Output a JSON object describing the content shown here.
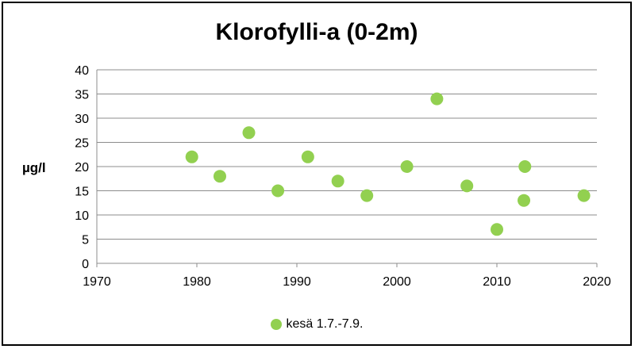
{
  "chart_data": {
    "type": "scatter",
    "title": "Klorofylli-a (0-2m)",
    "xlabel": "",
    "ylabel": "µg/l",
    "xlim": [
      1970,
      2020
    ],
    "ylim": [
      0,
      40
    ],
    "x_ticks": [
      1970,
      1980,
      1990,
      2000,
      2010,
      2020
    ],
    "y_ticks": [
      0,
      5,
      10,
      15,
      20,
      25,
      30,
      35,
      40
    ],
    "grid": true,
    "legend": "bottom",
    "series": [
      {
        "name": "kesä 1.7.-7.9.",
        "color": "#92d050",
        "points": [
          {
            "x": 1979.5,
            "y": 22
          },
          {
            "x": 1982.3,
            "y": 18
          },
          {
            "x": 1985.2,
            "y": 27
          },
          {
            "x": 1988.1,
            "y": 15
          },
          {
            "x": 1991.1,
            "y": 22
          },
          {
            "x": 1994.1,
            "y": 17
          },
          {
            "x": 1997.0,
            "y": 14
          },
          {
            "x": 2001.0,
            "y": 20
          },
          {
            "x": 2004.0,
            "y": 34
          },
          {
            "x": 2007.0,
            "y": 16
          },
          {
            "x": 2010.0,
            "y": 7
          },
          {
            "x": 2012.8,
            "y": 20
          },
          {
            "x": 2012.7,
            "y": 13
          },
          {
            "x": 2018.7,
            "y": 14
          }
        ]
      }
    ]
  }
}
